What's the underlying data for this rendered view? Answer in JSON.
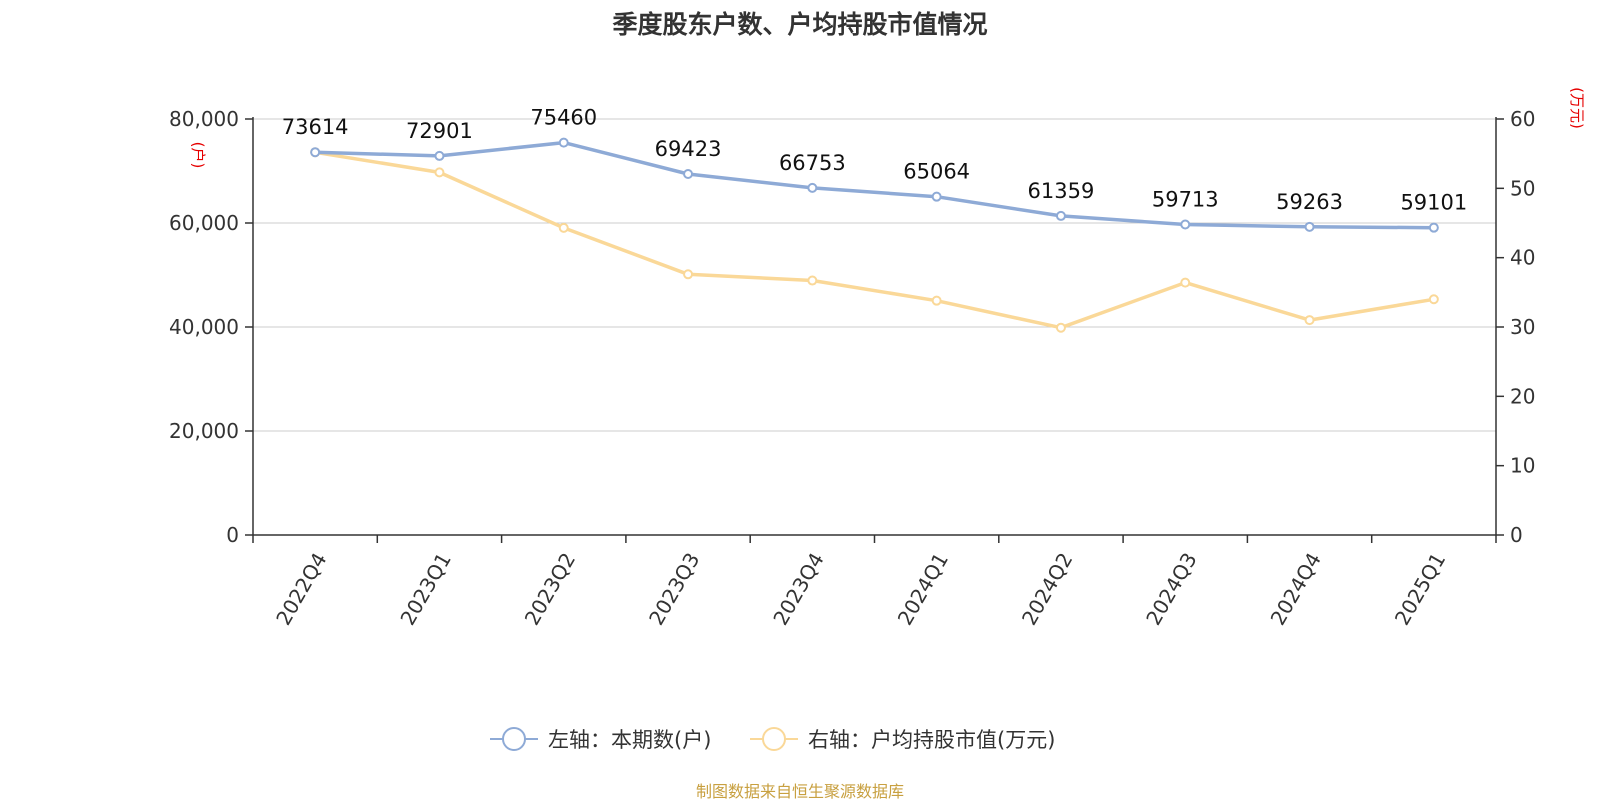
{
  "chart_data": {
    "type": "line",
    "title": "季度股东户数、户均持股市值情况",
    "categories": [
      "2022Q4",
      "2023Q1",
      "2023Q2",
      "2023Q3",
      "2023Q4",
      "2024Q1",
      "2024Q2",
      "2024Q3",
      "2024Q4",
      "2025Q1"
    ],
    "left_axis": {
      "unit_label": "(户)",
      "ylim": [
        0,
        80000
      ],
      "ticks": [
        {
          "value": 0,
          "label": "0"
        },
        {
          "value": 20000,
          "label": "20,000"
        },
        {
          "value": 40000,
          "label": "40,000"
        },
        {
          "value": 60000,
          "label": "60,000"
        },
        {
          "value": 80000,
          "label": "80,000"
        }
      ]
    },
    "right_axis": {
      "unit_label": "(万元)",
      "ylim": [
        0,
        60
      ],
      "ticks": [
        {
          "value": 0,
          "label": "0"
        },
        {
          "value": 10,
          "label": "10"
        },
        {
          "value": 20,
          "label": "20"
        },
        {
          "value": 30,
          "label": "30"
        },
        {
          "value": 40,
          "label": "40"
        },
        {
          "value": 50,
          "label": "50"
        },
        {
          "value": 60,
          "label": "60"
        }
      ]
    },
    "series": [
      {
        "name": "左轴：本期数(户)",
        "axis": "left",
        "color": "#8eaad6",
        "values": [
          73614,
          72901,
          75460,
          69423,
          66753,
          65064,
          61359,
          59713,
          59263,
          59101
        ],
        "labels": [
          "73614",
          "72901",
          "75460",
          "69423",
          "66753",
          "65064",
          "61359",
          "59713",
          "59263",
          "59101"
        ]
      },
      {
        "name": "右轴：户均持股市值(万元)",
        "axis": "right",
        "color": "#fad898",
        "values": [
          55.2,
          52.3,
          44.3,
          37.6,
          36.7,
          33.8,
          29.9,
          36.4,
          31.0,
          34.0
        ]
      }
    ],
    "grid": true,
    "legend_position": "bottom-center"
  },
  "source": "制图数据来自恒生聚源数据库"
}
